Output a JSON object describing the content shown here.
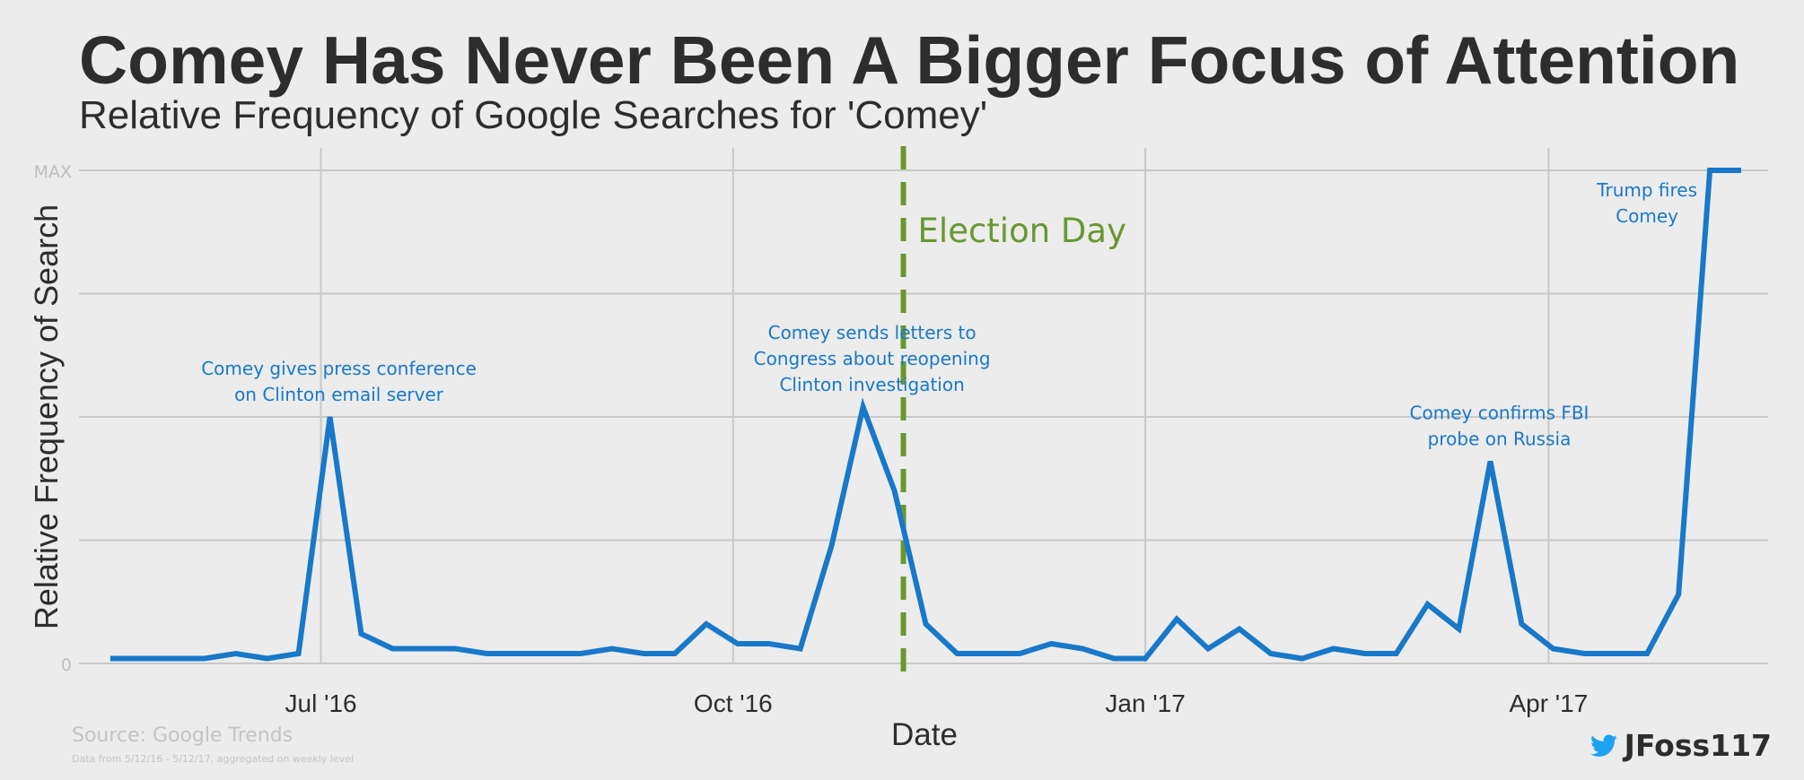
{
  "header": {
    "title": "Comey Has Never Been A Bigger Focus of Attention",
    "subtitle": "Relative Frequency of Google Searches for 'Comey'"
  },
  "footer": {
    "source": "Source: Google Trends",
    "note": "Data from 5/12/16 - 5/12/17, aggregated on weekly level",
    "handle": "JFoss117",
    "handle_icon": "twitter-bird-icon"
  },
  "colors": {
    "line": "#1878c9",
    "election": "#68982f",
    "grid": "#c8c8c8",
    "annotation": "#1878c9"
  },
  "chart_data": {
    "type": "line",
    "title": "Comey Has Never Been A Bigger Focus of Attention",
    "subtitle": "Relative Frequency of Google Searches for 'Comey'",
    "xlabel": "Date",
    "ylabel": "Relative Frequency of Search",
    "y_tick_labels": [
      {
        "value": 0,
        "label": "0"
      },
      {
        "value": 100,
        "label": "MAX"
      }
    ],
    "ylim": [
      0,
      100
    ],
    "xlim": [
      "2016-05-08",
      "2017-05-20"
    ],
    "x_ticks": [
      {
        "date": "2016-07-01",
        "label": "Jul '16"
      },
      {
        "date": "2016-10-01",
        "label": "Oct '16"
      },
      {
        "date": "2017-01-01",
        "label": "Jan '17"
      },
      {
        "date": "2017-04-01",
        "label": "Apr '17"
      }
    ],
    "grid": true,
    "series": [
      {
        "x": [
          "2016-05-15",
          "2016-05-22",
          "2016-05-29",
          "2016-06-05",
          "2016-06-12",
          "2016-06-19",
          "2016-06-26",
          "2016-07-03",
          "2016-07-10",
          "2016-07-17",
          "2016-07-24",
          "2016-07-31",
          "2016-08-07",
          "2016-08-14",
          "2016-08-21",
          "2016-08-28",
          "2016-09-04",
          "2016-09-11",
          "2016-09-18",
          "2016-09-25",
          "2016-10-02",
          "2016-10-09",
          "2016-10-16",
          "2016-10-23",
          "2016-10-30",
          "2016-11-06",
          "2016-11-13",
          "2016-11-20",
          "2016-11-27",
          "2016-12-04",
          "2016-12-11",
          "2016-12-18",
          "2016-12-25",
          "2017-01-01",
          "2017-01-08",
          "2017-01-15",
          "2017-01-22",
          "2017-01-29",
          "2017-02-05",
          "2017-02-12",
          "2017-02-19",
          "2017-02-26",
          "2017-03-05",
          "2017-03-12",
          "2017-03-19",
          "2017-03-26",
          "2017-04-02",
          "2017-04-09",
          "2017-04-16",
          "2017-04-23",
          "2017-04-30",
          "2017-05-07",
          "2017-05-14"
        ],
        "values": [
          1,
          1,
          1,
          1,
          2,
          1,
          2,
          50,
          6,
          3,
          3,
          3,
          2,
          2,
          2,
          2,
          3,
          2,
          2,
          8,
          4,
          4,
          3,
          24,
          52,
          35,
          8,
          2,
          2,
          2,
          4,
          3,
          1,
          1,
          9,
          3,
          7,
          2,
          1,
          3,
          2,
          2,
          12,
          7,
          41,
          8,
          3,
          2,
          2,
          2,
          14,
          100,
          100
        ]
      }
    ],
    "reference_line": {
      "date": "2016-11-08",
      "label": "Election Day"
    },
    "annotations": [
      {
        "date": "2016-07-03",
        "value": 50,
        "lines": [
          "Comey gives press conference",
          "on Clinton email server"
        ]
      },
      {
        "date": "2016-10-30",
        "value": 52,
        "lines": [
          "Comey sends letters to",
          "Congress about reopening",
          "Clinton investigation"
        ]
      },
      {
        "date": "2017-03-19",
        "value": 41,
        "lines": [
          "Comey confirms FBI",
          "probe on Russia"
        ]
      },
      {
        "date": "2017-05-07",
        "value": 100,
        "lines": [
          "Trump fires",
          "Comey"
        ]
      }
    ]
  }
}
